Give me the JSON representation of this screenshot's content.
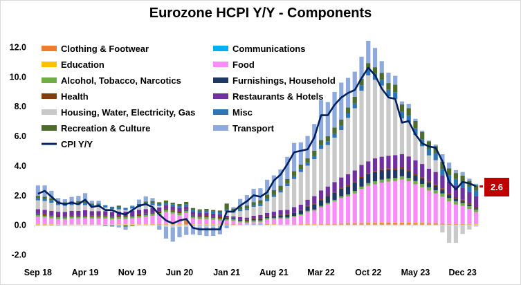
{
  "chart_data": {
    "type": "bar",
    "stacked": true,
    "title": "Eurozone HCPI Y/Y - Components",
    "xlabel": "",
    "ylabel": "",
    "ylim": [
      -2,
      12
    ],
    "yticks": [
      "12.0",
      "10.0",
      "8.0",
      "6.0",
      "4.0",
      "2.0",
      "0.0",
      "-2.0"
    ],
    "ytick_values": [
      12,
      10,
      8,
      6,
      4,
      2,
      0,
      -2
    ],
    "xtick_labels": [
      "Sep 18",
      "Apr 19",
      "Nov 19",
      "Jun 20",
      "Jan 21",
      "Aug 21",
      "Mar 22",
      "Oct 22",
      "May 23",
      "Dec 23"
    ],
    "xtick_index": [
      0,
      7,
      14,
      21,
      28,
      35,
      42,
      49,
      56,
      63
    ],
    "first_month": "Sep 18",
    "last_month": "Feb 24",
    "grid": false,
    "legend_position": "top-left",
    "end_label": "2.6",
    "end_label_color": "#c00000",
    "series": [
      {
        "name": "Clothing & Footwear",
        "color": "#ED7D31",
        "values": [
          0.05,
          0.05,
          0.04,
          0.03,
          0.02,
          0.03,
          0.03,
          0.03,
          0.02,
          0.02,
          0.02,
          0.02,
          0.03,
          0.03,
          0.03,
          0.03,
          0.03,
          0.05,
          0.06,
          0.05,
          0.05,
          0.04,
          0.3,
          0.03,
          0.02,
          0.03,
          0.03,
          0.04,
          0.08,
          0.06,
          0.03,
          0.03,
          0.03,
          0.04,
          0.06,
          0.04,
          0.02,
          0.02,
          0.03,
          0.05,
          0.06,
          0.05,
          0.07,
          0.08,
          0.08,
          0.09,
          0.1,
          0.1,
          0.1,
          0.12,
          0.12,
          0.13,
          0.15,
          0.14,
          0.14,
          0.13,
          0.12,
          0.12,
          0.1,
          0.1,
          0.08,
          0.07,
          0.06,
          0.06,
          0.05,
          0.04
        ]
      },
      {
        "name": "Communications",
        "color": "#00B0F0",
        "values": [
          -0.04,
          -0.04,
          -0.05,
          -0.05,
          -0.04,
          -0.03,
          -0.03,
          -0.03,
          -0.03,
          -0.03,
          -0.02,
          -0.02,
          -0.02,
          -0.02,
          -0.03,
          -0.03,
          -0.03,
          -0.02,
          -0.02,
          -0.02,
          -0.03,
          -0.03,
          -0.03,
          -0.04,
          -0.05,
          -0.05,
          -0.04,
          -0.03,
          -0.02,
          -0.02,
          -0.01,
          0.01,
          0.02,
          0.01,
          0.0,
          0.0,
          0.0,
          -0.01,
          -0.01,
          -0.01,
          -0.01,
          -0.01,
          -0.01,
          -0.01,
          -0.01,
          -0.01,
          -0.01,
          -0.01,
          -0.01,
          -0.01,
          -0.01,
          -0.01,
          -0.01,
          -0.01,
          -0.01,
          -0.01,
          -0.01,
          -0.01,
          -0.01,
          -0.01,
          -0.01,
          -0.01,
          -0.01,
          -0.01,
          -0.01,
          -0.01
        ]
      },
      {
        "name": "Education",
        "color": "#FFC000",
        "values": [
          0.01,
          0.01,
          0.01,
          0.01,
          0.01,
          0.01,
          0.01,
          0.01,
          0.01,
          0.01,
          0.01,
          0.01,
          0.02,
          0.02,
          0.02,
          0.02,
          0.02,
          0.02,
          0.02,
          0.02,
          0.02,
          0.02,
          0.02,
          0.02,
          0.02,
          0.02,
          0.02,
          0.02,
          0.02,
          0.02,
          -0.01,
          -0.01,
          -0.02,
          -0.01,
          -0.01,
          0.01,
          -0.03,
          -0.03,
          -0.03,
          -0.03,
          0.01,
          0.01,
          0.01,
          0.01,
          0.01,
          0.02,
          0.02,
          0.02,
          0.02,
          0.02,
          0.02,
          0.02,
          0.02,
          0.02,
          0.02,
          0.02,
          0.02,
          0.02,
          0.02,
          0.02,
          0.02,
          0.02,
          0.02,
          0.02,
          0.02,
          0.02
        ]
      },
      {
        "name": "Food",
        "color": "#F88CF8",
        "values": [
          0.5,
          0.45,
          0.4,
          0.35,
          0.35,
          0.4,
          0.4,
          0.4,
          0.4,
          0.4,
          0.4,
          0.35,
          0.35,
          0.35,
          0.4,
          0.45,
          0.5,
          0.55,
          0.6,
          0.8,
          0.7,
          0.6,
          0.5,
          0.4,
          0.35,
          0.35,
          0.3,
          0.25,
          0.2,
          0.2,
          0.15,
          0.1,
          0.15,
          0.15,
          0.3,
          0.35,
          0.4,
          0.4,
          0.5,
          0.6,
          0.8,
          0.9,
          1.1,
          1.3,
          1.5,
          1.7,
          1.8,
          2.0,
          2.3,
          2.5,
          2.6,
          2.7,
          2.75,
          2.8,
          2.9,
          2.8,
          2.6,
          2.4,
          2.2,
          2.0,
          1.8,
          1.5,
          1.3,
          1.2,
          1.0,
          0.8
        ]
      },
      {
        "name": "Alcohol, Tobacco, Narcotics",
        "color": "#70AD47",
        "values": [
          0.12,
          0.12,
          0.12,
          0.12,
          0.12,
          0.12,
          0.12,
          0.12,
          0.12,
          0.12,
          0.12,
          0.12,
          0.12,
          0.12,
          0.12,
          0.12,
          0.12,
          0.12,
          0.12,
          0.13,
          0.13,
          0.13,
          0.13,
          0.12,
          0.12,
          0.12,
          0.12,
          0.12,
          0.1,
          0.1,
          0.1,
          0.1,
          0.1,
          0.1,
          0.1,
          0.08,
          0.08,
          0.08,
          0.08,
          0.08,
          0.08,
          0.08,
          0.1,
          0.1,
          0.1,
          0.12,
          0.14,
          0.16,
          0.16,
          0.18,
          0.2,
          0.2,
          0.2,
          0.2,
          0.22,
          0.22,
          0.22,
          0.22,
          0.22,
          0.22,
          0.22,
          0.22,
          0.22,
          0.2,
          0.2,
          0.18
        ]
      },
      {
        "name": "Furnishings, Household",
        "color": "#203864",
        "values": [
          0.03,
          0.03,
          0.03,
          0.03,
          0.03,
          0.03,
          0.03,
          0.03,
          0.03,
          0.03,
          0.03,
          0.03,
          0.03,
          0.03,
          0.04,
          0.04,
          0.05,
          0.05,
          0.05,
          0.05,
          0.05,
          0.05,
          0.05,
          0.05,
          0.04,
          0.04,
          0.04,
          0.04,
          0.08,
          0.06,
          0.06,
          0.06,
          0.08,
          0.08,
          0.1,
          0.12,
          0.15,
          0.18,
          0.2,
          0.25,
          0.3,
          0.35,
          0.4,
          0.45,
          0.5,
          0.52,
          0.55,
          0.58,
          0.6,
          0.6,
          0.62,
          0.62,
          0.6,
          0.55,
          0.5,
          0.45,
          0.4,
          0.35,
          0.3,
          0.28,
          0.25,
          0.2,
          0.15,
          0.12,
          0.1,
          0.08
        ]
      },
      {
        "name": "Health",
        "color": "#843C0C",
        "values": [
          0.05,
          0.05,
          0.05,
          0.05,
          0.05,
          0.05,
          0.05,
          0.05,
          0.05,
          0.05,
          0.05,
          0.05,
          0.05,
          0.05,
          0.05,
          0.05,
          0.05,
          0.05,
          0.05,
          0.05,
          0.05,
          0.05,
          0.05,
          0.05,
          0.05,
          0.05,
          0.05,
          0.05,
          0.04,
          0.04,
          0.04,
          0.04,
          0.04,
          0.04,
          0.04,
          0.04,
          0.04,
          0.04,
          0.04,
          0.04,
          0.05,
          0.05,
          0.05,
          0.05,
          0.05,
          0.05,
          0.06,
          0.06,
          0.07,
          0.07,
          0.08,
          0.08,
          0.1,
          0.1,
          0.1,
          0.1,
          0.1,
          0.1,
          0.1,
          0.1,
          0.1,
          0.1,
          0.1,
          0.1,
          0.1,
          0.1
        ]
      },
      {
        "name": "Restaurants & Hotels",
        "color": "#7030A0",
        "values": [
          0.3,
          0.3,
          0.3,
          0.3,
          0.3,
          0.3,
          0.3,
          0.35,
          0.3,
          0.3,
          0.3,
          0.3,
          0.3,
          0.3,
          0.3,
          0.3,
          0.3,
          0.3,
          0.28,
          0.25,
          0.25,
          0.25,
          0.2,
          0.2,
          0.2,
          0.2,
          0.2,
          0.2,
          0.1,
          0.1,
          0.15,
          0.15,
          0.2,
          0.25,
          0.2,
          0.25,
          0.3,
          0.3,
          0.35,
          0.35,
          0.4,
          0.5,
          0.6,
          0.6,
          0.65,
          0.7,
          0.75,
          0.75,
          0.8,
          0.8,
          0.85,
          0.85,
          0.85,
          0.9,
          0.9,
          0.9,
          0.9,
          0.9,
          0.85,
          0.85,
          0.85,
          0.8,
          0.8,
          0.8,
          0.75,
          0.7
        ]
      },
      {
        "name": "Housing, Water, Electricity, Gas",
        "color": "#C9C9C9",
        "values": [
          0.6,
          0.6,
          0.55,
          0.45,
          0.4,
          0.4,
          0.4,
          0.35,
          0.3,
          0.3,
          0.25,
          0.2,
          0.15,
          0.1,
          0.15,
          0.2,
          0.25,
          0.2,
          0.1,
          -0.1,
          -0.15,
          -0.1,
          -0.1,
          -0.1,
          -0.1,
          -0.1,
          -0.1,
          -0.05,
          0.3,
          0.25,
          0.4,
          0.5,
          0.6,
          0.6,
          0.8,
          1.0,
          1.2,
          1.6,
          1.9,
          2.2,
          2.3,
          2.5,
          2.8,
          2.8,
          3.0,
          3.2,
          3.8,
          4.2,
          5.0,
          5.8,
          5.3,
          4.8,
          4.0,
          3.8,
          2.4,
          2.3,
          1.7,
          1.2,
          0.9,
          0.8,
          -0.5,
          -1.2,
          -1.2,
          -0.6,
          -0.3,
          -0.1
        ]
      },
      {
        "name": "Misc",
        "color": "#2E75B6",
        "values": [
          0.15,
          0.15,
          0.15,
          0.15,
          0.15,
          0.15,
          0.15,
          0.15,
          0.15,
          0.15,
          0.15,
          0.15,
          0.15,
          0.15,
          0.15,
          0.15,
          0.15,
          0.15,
          0.15,
          0.15,
          0.15,
          0.15,
          0.15,
          0.15,
          0.15,
          0.15,
          0.15,
          0.15,
          0.12,
          0.12,
          0.12,
          0.12,
          0.12,
          0.15,
          0.15,
          0.15,
          0.15,
          0.15,
          0.18,
          0.2,
          0.2,
          0.22,
          0.25,
          0.25,
          0.28,
          0.3,
          0.3,
          0.32,
          0.35,
          0.38,
          0.4,
          0.4,
          0.45,
          0.45,
          0.45,
          0.45,
          0.45,
          0.45,
          0.45,
          0.45,
          0.45,
          0.45,
          0.45,
          0.42,
          0.4,
          0.4
        ]
      },
      {
        "name": "Recreation & Culture",
        "color": "#4E6B2E",
        "values": [
          0.15,
          0.15,
          0.15,
          0.12,
          0.1,
          0.1,
          0.12,
          0.15,
          0.05,
          0.05,
          -0.05,
          -0.05,
          0.1,
          -0.1,
          -0.05,
          0.05,
          0.1,
          0.12,
          0.1,
          0.15,
          0.1,
          0.12,
          0.15,
          0.12,
          0.1,
          0.12,
          0.1,
          0.1,
          0.4,
          0.15,
          0.2,
          0.2,
          0.2,
          0.25,
          0.3,
          0.3,
          0.3,
          0.32,
          0.35,
          0.3,
          0.3,
          0.35,
          0.35,
          0.35,
          0.4,
          0.4,
          0.4,
          0.45,
          0.45,
          0.45,
          0.45,
          0.45,
          0.45,
          0.5,
          0.5,
          0.5,
          0.5,
          0.5,
          0.5,
          0.5,
          0.5,
          0.45,
          0.4,
          0.4,
          0.35,
          0.35
        ]
      },
      {
        "name": "Transport",
        "color": "#8EA9DB",
        "values": [
          0.7,
          0.75,
          0.5,
          0.2,
          0.2,
          0.3,
          0.35,
          0.5,
          0.2,
          0.2,
          0.0,
          -0.05,
          -0.15,
          -0.2,
          0.05,
          0.3,
          0.35,
          0.2,
          -0.3,
          -0.8,
          -0.95,
          -0.7,
          -0.55,
          -0.5,
          -0.55,
          -0.6,
          -0.6,
          -0.55,
          -0.2,
          0.1,
          0.5,
          0.7,
          0.9,
          0.8,
          1.0,
          1.0,
          1.1,
          1.5,
          1.9,
          1.5,
          1.5,
          1.8,
          2.7,
          2.3,
          2.4,
          2.5,
          2.0,
          1.7,
          1.5,
          1.5,
          1.3,
          0.8,
          0.7,
          0.6,
          0.2,
          0.3,
          0.15,
          0.1,
          0.05,
          0.1,
          0.5,
          0.4,
          0.2,
          0.25,
          0.15,
          0.1
        ]
      }
    ],
    "line": {
      "name": "CPI Y/Y",
      "color": "#002060",
      "values": [
        2.1,
        2.3,
        1.9,
        1.5,
        1.4,
        1.5,
        1.4,
        1.7,
        1.2,
        1.3,
        1.0,
        1.0,
        0.8,
        0.7,
        1.0,
        1.3,
        1.4,
        1.2,
        0.7,
        0.3,
        0.1,
        0.3,
        0.4,
        -0.2,
        -0.3,
        -0.3,
        -0.3,
        -0.3,
        0.9,
        0.9,
        1.3,
        1.6,
        2.0,
        1.9,
        2.2,
        3.0,
        3.4,
        4.1,
        4.9,
        5.0,
        5.1,
        5.9,
        7.4,
        7.4,
        8.1,
        8.6,
        8.9,
        9.1,
        9.9,
        10.6,
        10.1,
        9.2,
        8.6,
        8.5,
        6.9,
        7.0,
        6.1,
        5.5,
        5.3,
        5.2,
        4.3,
        2.9,
        2.4,
        2.9,
        2.8,
        2.6
      ]
    }
  }
}
